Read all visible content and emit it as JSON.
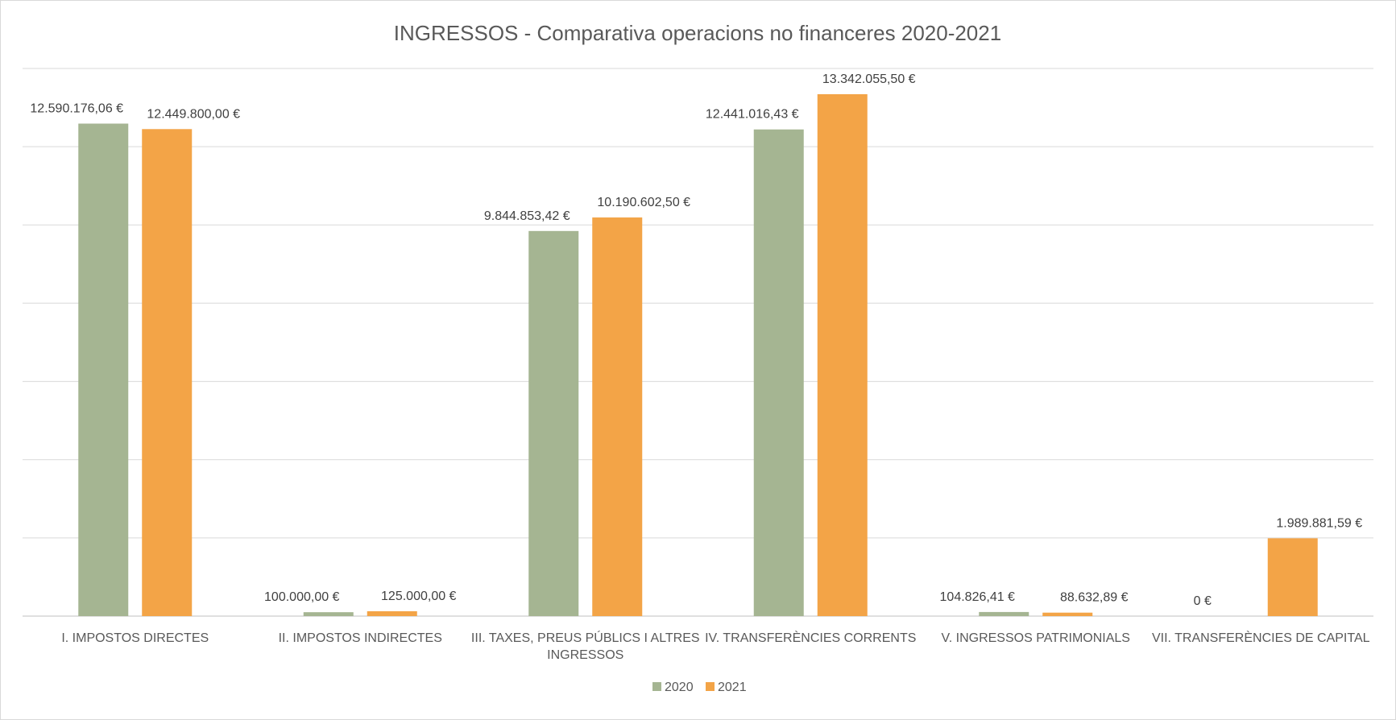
{
  "chart_data": {
    "type": "bar",
    "title": "INGRESSOS - Comparativa operacions no financeres 2020-2021",
    "xlabel": "",
    "ylabel": "",
    "ylim": [
      0,
      14000000
    ],
    "grid": true,
    "legend_position": "bottom",
    "categories": [
      [
        "I. IMPOSTOS DIRECTES"
      ],
      [
        "II. IMPOSTOS INDIRECTES"
      ],
      [
        "III. TAXES, PREUS PÚBLICS I ALTRES",
        "INGRESSOS"
      ],
      [
        "IV. TRANSFERÈNCIES CORRENTS"
      ],
      [
        "V. INGRESSOS PATRIMONIALS"
      ],
      [
        "VII. TRANSFERÈNCIES DE CAPITAL"
      ]
    ],
    "series": [
      {
        "name": "2020",
        "color": "#a5b592",
        "values": [
          12590176.06,
          100000.0,
          9844853.42,
          12441016.43,
          104826.41,
          0
        ],
        "labels": [
          "12.590.176,06 €",
          "100.000,00 €",
          "9.844.853,42 €",
          "12.441.016,43 €",
          "104.826,41 €",
          "0 €"
        ]
      },
      {
        "name": "2021",
        "color": "#f3a447",
        "values": [
          12449800.0,
          125000.0,
          10190602.5,
          13342055.5,
          88632.89,
          1989881.59
        ],
        "labels": [
          "12.449.800,00 €",
          "125.000,00 €",
          "10.190.602,50 €",
          "13.342.055,50 €",
          "88.632,89 €",
          "1.989.881,59 €"
        ]
      }
    ]
  }
}
